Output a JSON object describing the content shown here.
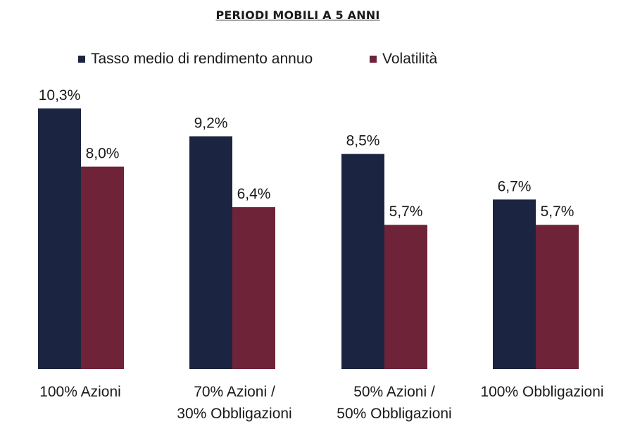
{
  "chart_data": {
    "type": "bar",
    "title": "PERIODI MOBILI A 5 ANNI",
    "categories": [
      [
        "100% Azioni"
      ],
      [
        "70% Azioni /",
        "30% Obbligazioni"
      ],
      [
        "50% Azioni /",
        "50% Obbligazioni"
      ],
      [
        "100% Obbligazioni"
      ]
    ],
    "series": [
      {
        "name": "Tasso medio di rendimento annuo",
        "color": "#1b2541",
        "values": [
          10.3,
          9.2,
          8.5,
          6.7
        ],
        "labels": [
          "10,3%",
          "9,2%",
          "8,5%",
          "6,7%"
        ]
      },
      {
        "name": "Volatilità",
        "color": "#6e2339",
        "values": [
          8.0,
          6.4,
          5.7,
          5.7
        ],
        "labels": [
          "8,0%",
          "6,4%",
          "5,7%",
          "5,7%"
        ]
      }
    ],
    "ylim": [
      0,
      10.3
    ],
    "grid": false,
    "legend": "top"
  }
}
